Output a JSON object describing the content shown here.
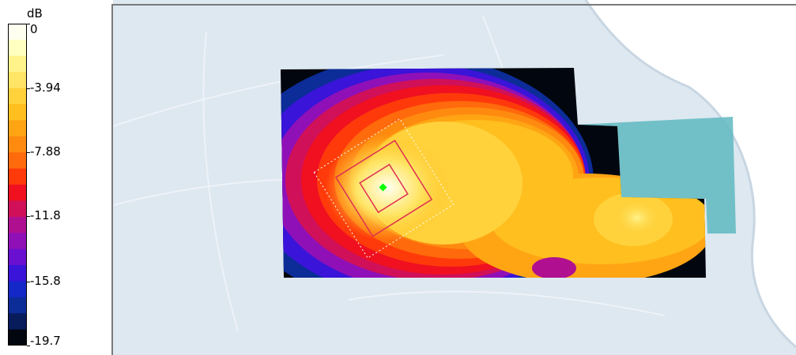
{
  "chart_data": {
    "type": "heatmap",
    "colorbar": {
      "unit": "dB",
      "range": [
        -19.7,
        0
      ],
      "tick_labels": [
        "0",
        "-3.94",
        "-7.88",
        "-11.8",
        "-15.8",
        "-19.7"
      ],
      "tick_values": [
        0,
        -3.94,
        -7.88,
        -11.8,
        -15.8,
        -19.7
      ],
      "color_steps": [
        "#fffff0",
        "#ffffc0",
        "#fff38a",
        "#ffe566",
        "#ffd23c",
        "#ffbf1e",
        "#ffa514",
        "#ff8a10",
        "#ff6a0c",
        "#ff3a0a",
        "#f01020",
        "#d01058",
        "#b01090",
        "#9010b8",
        "#6a10d0",
        "#3a14d8",
        "#1428c8",
        "#0c2c98",
        "#081c5c",
        "#02060e"
      ]
    },
    "peak": {
      "value": 0,
      "marker_color": "#00ff00"
    },
    "colors": {
      "phantom": "#dce7f0",
      "overlay_teal": "#5fb9bf",
      "grid_lines": "#e03050"
    }
  }
}
